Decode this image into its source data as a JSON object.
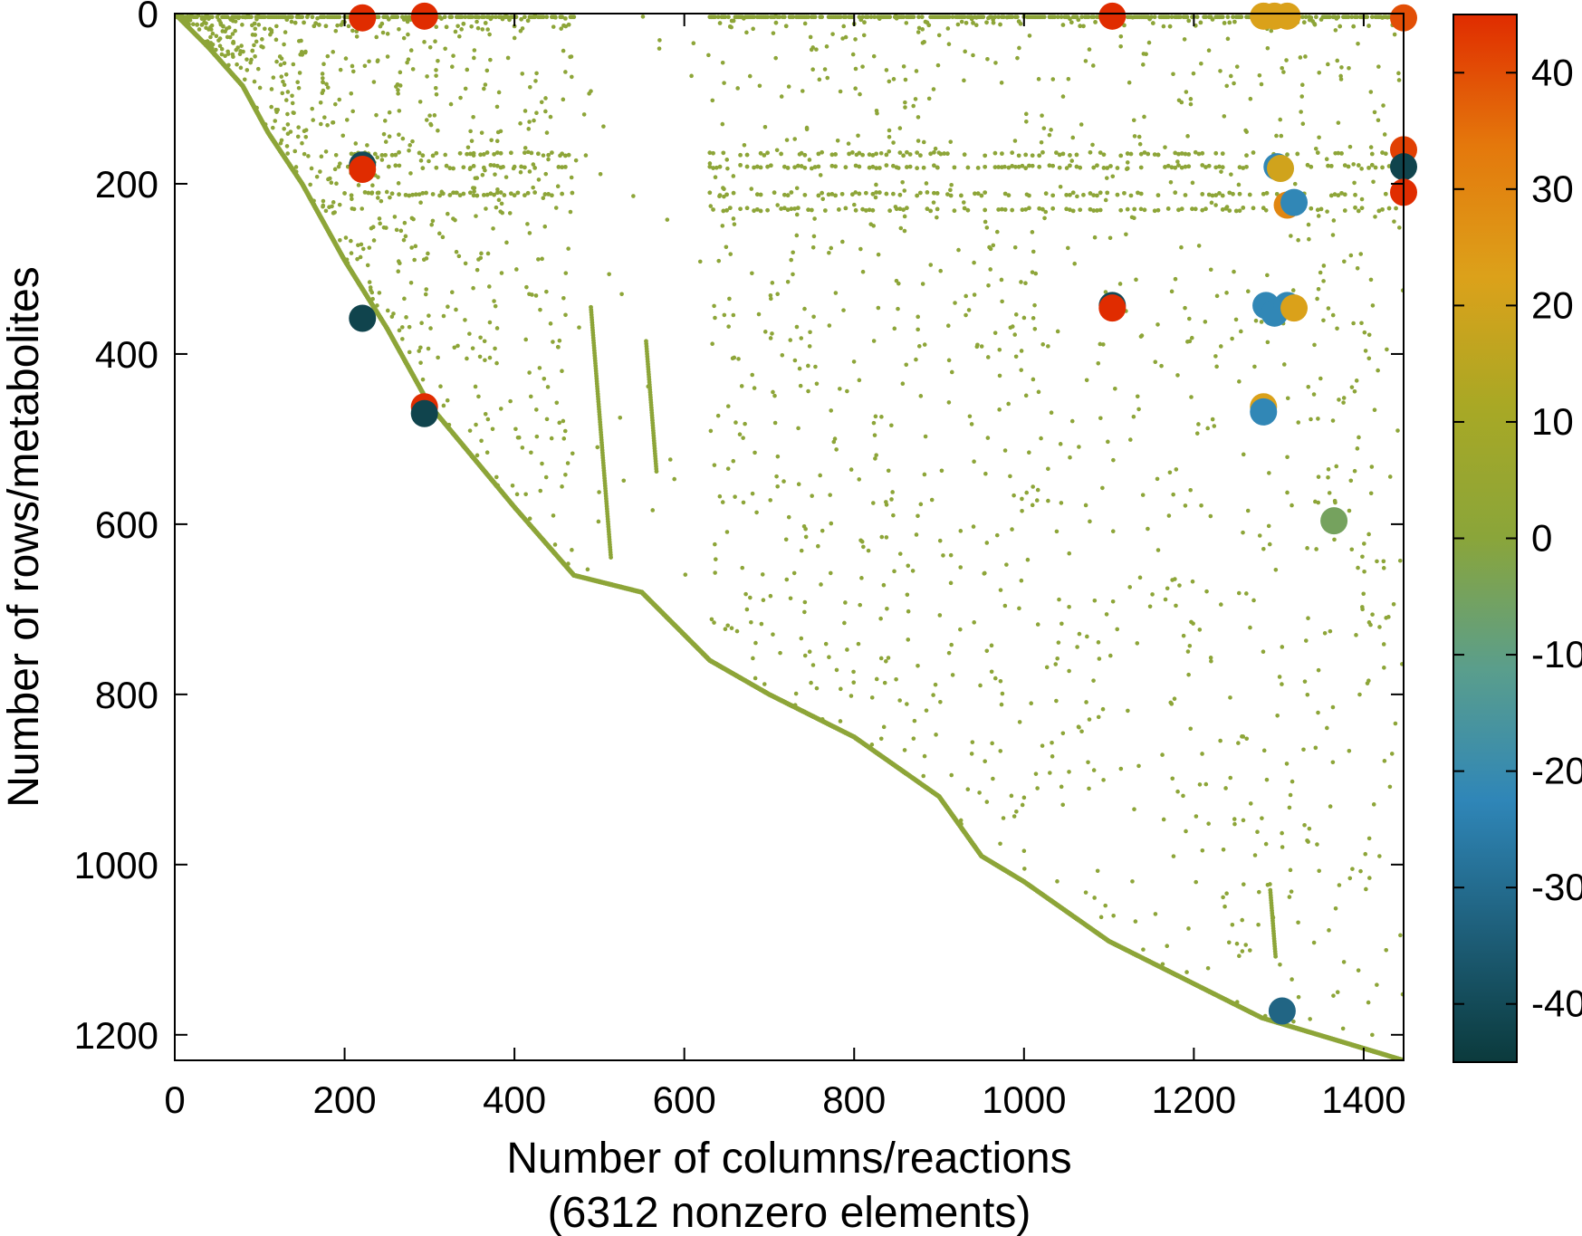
{
  "chart_data": {
    "type": "scatter",
    "title": "",
    "xlabel": "Number of columns/reactions",
    "xlabel_line2": "(6312 nonzero elements)",
    "ylabel": "Number of rows/metabolites",
    "xlim": [
      0,
      1447
    ],
    "ylim": [
      1230,
      0
    ],
    "y_inverted": true,
    "grid": false,
    "legend": "none",
    "x_ticks": [
      "0",
      "200",
      "400",
      "600",
      "800",
      "1000",
      "1200",
      "1400"
    ],
    "y_ticks": [
      "0",
      "200",
      "400",
      "600",
      "800",
      "1000",
      "1200"
    ],
    "colorbar": {
      "range": [
        -45,
        45
      ],
      "ticks": [
        "40",
        "30",
        "20",
        "10",
        "0",
        "-10",
        "-20",
        "-30",
        "-40"
      ],
      "colors": [
        "#0b3a3c",
        "#1e5f7a",
        "#2f86b8",
        "#5a9e8c",
        "#8aa53a",
        "#a8a825",
        "#dca11a",
        "#e4780c",
        "#e02c00"
      ]
    },
    "series": [
      {
        "marker": "small",
        "note_color_value": 1,
        "diagonal": [
          [
            0,
            0
          ],
          [
            40,
            40
          ],
          [
            80,
            85
          ],
          [
            110,
            140
          ],
          [
            150,
            200
          ],
          [
            200,
            290
          ],
          [
            250,
            370
          ],
          [
            300,
            460
          ],
          [
            350,
            520
          ],
          [
            400,
            580
          ],
          [
            470,
            660
          ],
          [
            550,
            680
          ],
          [
            630,
            760
          ],
          [
            700,
            800
          ],
          [
            800,
            850
          ],
          [
            900,
            920
          ],
          [
            950,
            990
          ],
          [
            1000,
            1020
          ],
          [
            1100,
            1090
          ],
          [
            1200,
            1140
          ],
          [
            1280,
            1180
          ],
          [
            1447,
            1230
          ]
        ],
        "top_band": [
          [
            0,
            470,
            4
          ],
          [
            630,
            1447,
            4
          ]
        ],
        "h_bands": [
          [
            [
              200,
              470
            ],
            165
          ],
          [
            [
              200,
              470
            ],
            180
          ],
          [
            [
              200,
              470
            ],
            212
          ],
          [
            [
              630,
              1447
            ],
            165
          ],
          [
            [
              630,
              1447
            ],
            180
          ],
          [
            [
              630,
              1447
            ],
            212
          ],
          [
            [
              630,
              1447
            ],
            230
          ]
        ]
      },
      {
        "marker": "large",
        "points": [
          {
            "x": 221,
            "y": 5,
            "v": 45
          },
          {
            "x": 294,
            "y": 3,
            "v": 45
          },
          {
            "x": 1104,
            "y": 3,
            "v": 45
          },
          {
            "x": 1447,
            "y": 5,
            "v": 40
          },
          {
            "x": 1282,
            "y": 3,
            "v": 22
          },
          {
            "x": 1295,
            "y": 3,
            "v": 22
          },
          {
            "x": 1310,
            "y": 3,
            "v": 22
          },
          {
            "x": 221,
            "y": 178,
            "v": -40
          },
          {
            "x": 221,
            "y": 183,
            "v": 45
          },
          {
            "x": 1447,
            "y": 160,
            "v": 42
          },
          {
            "x": 1447,
            "y": 180,
            "v": -42
          },
          {
            "x": 1447,
            "y": 210,
            "v": 45
          },
          {
            "x": 1298,
            "y": 180,
            "v": -22
          },
          {
            "x": 1302,
            "y": 182,
            "v": 20
          },
          {
            "x": 1310,
            "y": 225,
            "v": 30
          },
          {
            "x": 1318,
            "y": 222,
            "v": -22
          },
          {
            "x": 221,
            "y": 358,
            "v": -42
          },
          {
            "x": 1104,
            "y": 343,
            "v": -40
          },
          {
            "x": 1104,
            "y": 346,
            "v": 45
          },
          {
            "x": 1285,
            "y": 343,
            "v": -22
          },
          {
            "x": 1295,
            "y": 352,
            "v": -22
          },
          {
            "x": 1310,
            "y": 343,
            "v": -22
          },
          {
            "x": 1318,
            "y": 346,
            "v": 22
          },
          {
            "x": 294,
            "y": 462,
            "v": 45
          },
          {
            "x": 294,
            "y": 470,
            "v": -42
          },
          {
            "x": 1282,
            "y": 462,
            "v": 22
          },
          {
            "x": 1282,
            "y": 468,
            "v": -22
          },
          {
            "x": 1365,
            "y": 596,
            "v": -5
          },
          {
            "x": 1304,
            "y": 1172,
            "v": -32
          }
        ]
      }
    ]
  }
}
